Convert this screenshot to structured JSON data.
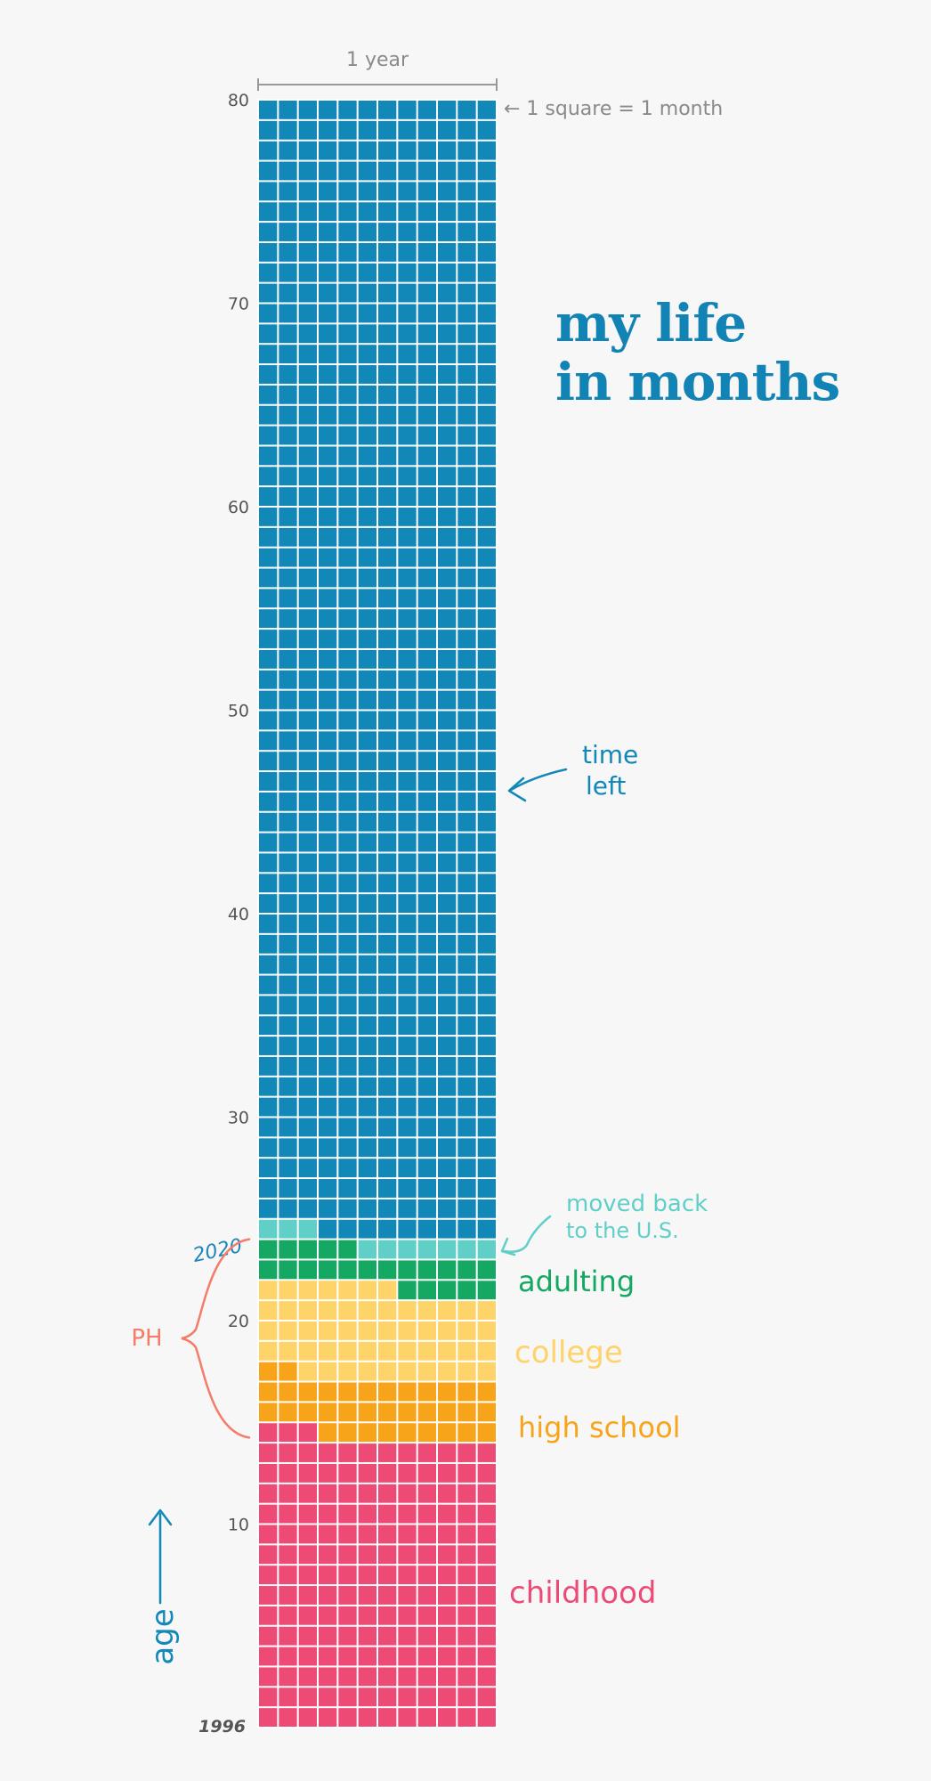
{
  "title": {
    "line1": "my life",
    "line2": "in months"
  },
  "colors": {
    "background": "#f7f7f7",
    "time_left": "#1188b8",
    "moved_back": "#5fcfc8",
    "adulting": "#14a862",
    "college": "#fdd36a",
    "high_school": "#f8a41a",
    "childhood": "#ee4a76",
    "ph_brace": "#f47c68",
    "year_label": "#1e87b8",
    "axis_text": "#555555",
    "scale_text": "#8a8a8a"
  },
  "chart_data": {
    "type": "waffle",
    "unit": "1 square = 1 month",
    "columns_label": "1 year",
    "columns": 12,
    "total_years": 80,
    "y_ticks": [
      10,
      20,
      30,
      40,
      50,
      60,
      70,
      80
    ],
    "start_label": "1996",
    "marker_label": "2020",
    "marker_age": 24,
    "axis_label": "age",
    "segments": [
      {
        "key": "childhood",
        "label": "childhood",
        "start_month": 0,
        "end_month": 171
      },
      {
        "key": "high_school",
        "label": "high school",
        "start_month": 171,
        "end_month": 206
      },
      {
        "key": "college",
        "label": "college",
        "start_month": 206,
        "end_month": 259
      },
      {
        "key": "adulting",
        "label": "adulting",
        "start_month": 259,
        "end_month": 281
      },
      {
        "key": "moved_back",
        "label": "moved back to the U.S.",
        "start_month": 281,
        "end_month": 291
      },
      {
        "key": "time_left",
        "label": "time left",
        "start_month": 291,
        "end_month": 960
      }
    ],
    "annotations": {
      "scale": "← 1 square = 1 month",
      "time_left": [
        "time",
        "left"
      ],
      "moved_back": [
        "moved back",
        "to the U.S."
      ],
      "adulting": "adulting",
      "college": "college",
      "high_school": "high school",
      "childhood": "childhood",
      "ph": "PH",
      "ph_start_month": 171,
      "ph_end_month": 288
    }
  }
}
